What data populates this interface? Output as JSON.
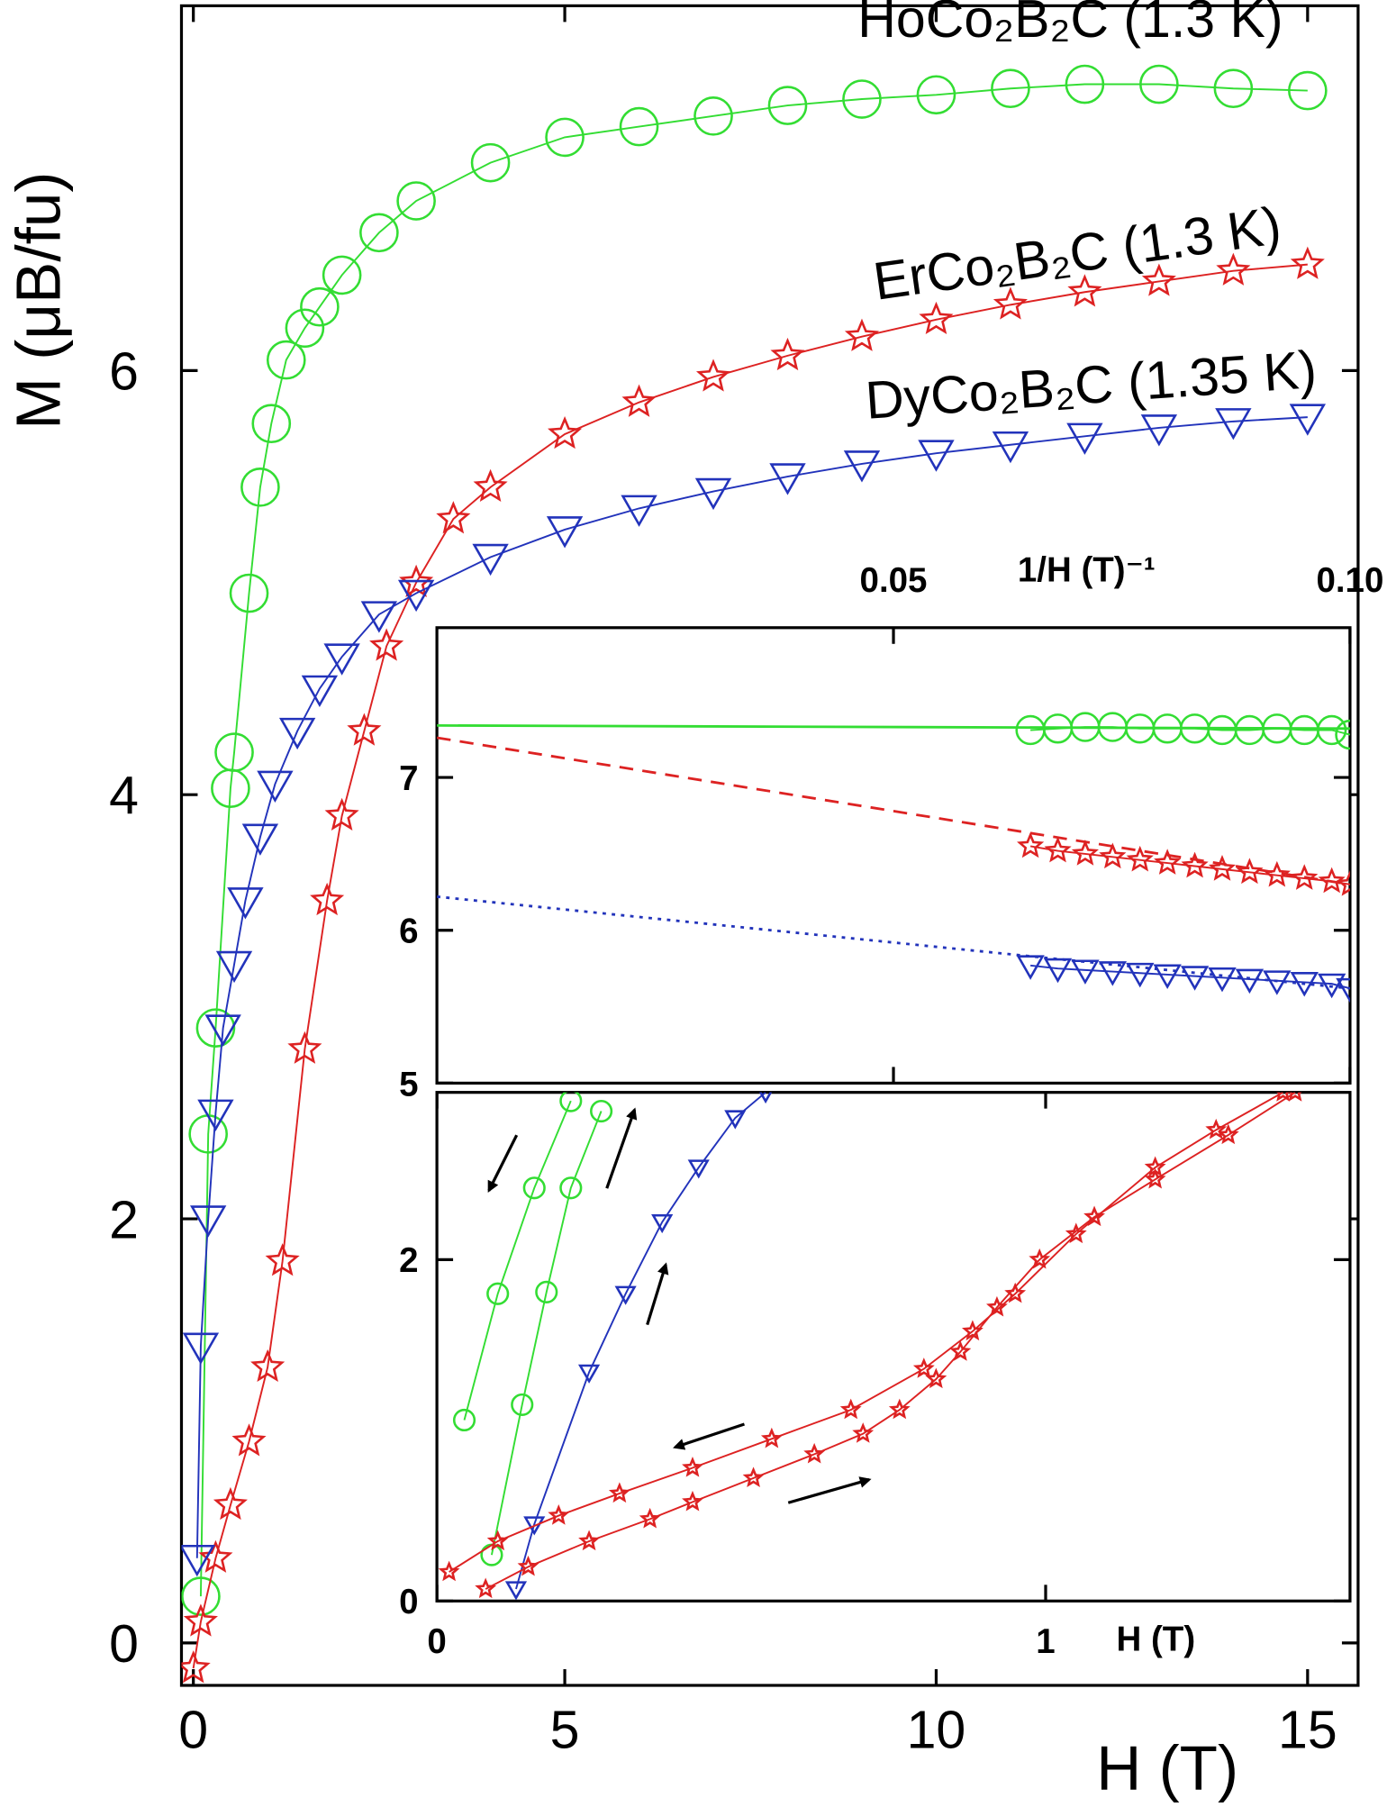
{
  "chart_data": [
    {
      "type": "line",
      "x_label": "H (T)",
      "y_label": "M (μB/fu)",
      "xlim": [
        -0.16,
        15.68
      ],
      "ylim": [
        -0.2,
        7.72
      ],
      "xticks": [
        0,
        5,
        10,
        15
      ],
      "yticks": [
        0,
        2,
        4,
        6
      ],
      "series": [
        {
          "name": "HoCo₂B₂C (1.3 K)",
          "color": "#33dd33",
          "marker": "circle",
          "x": [
            0.1,
            0.2,
            0.3,
            0.5,
            0.55,
            0.75,
            0.9,
            1.05,
            1.25,
            1.5,
            1.7,
            2,
            2.5,
            3,
            4,
            5,
            6,
            7,
            8,
            9,
            10,
            11,
            12,
            13,
            14,
            15
          ],
          "values": [
            0.22,
            2.4,
            2.9,
            4.03,
            4.2,
            4.95,
            5.45,
            5.75,
            6.05,
            6.2,
            6.3,
            6.45,
            6.65,
            6.8,
            6.98,
            7.1,
            7.15,
            7.2,
            7.25,
            7.28,
            7.3,
            7.33,
            7.35,
            7.35,
            7.33,
            7.32
          ]
        },
        {
          "name": "ErCo₂B₂C (1.3 K)",
          "color": "#dd2222",
          "marker": "star",
          "x": [
            0,
            0.1,
            0.3,
            0.5,
            0.75,
            1,
            1.2,
            1.5,
            1.8,
            2,
            2.3,
            2.6,
            3,
            3.5,
            4,
            5,
            6,
            7,
            8,
            9,
            10,
            11,
            12,
            13,
            14,
            15
          ],
          "values": [
            -0.12,
            0.1,
            0.4,
            0.65,
            0.95,
            1.3,
            1.8,
            2.8,
            3.5,
            3.9,
            4.3,
            4.7,
            5.0,
            5.3,
            5.45,
            5.7,
            5.85,
            5.97,
            6.07,
            6.16,
            6.24,
            6.31,
            6.37,
            6.42,
            6.47,
            6.5
          ]
        },
        {
          "name": "DyCo₂B₂C (1.35 K)",
          "color": "#2233bb",
          "marker": "triangle",
          "x": [
            0.05,
            0.1,
            0.2,
            0.3,
            0.4,
            0.55,
            0.7,
            0.9,
            1.1,
            1.4,
            1.7,
            2,
            2.5,
            3,
            4,
            5,
            6,
            7,
            8,
            9,
            10,
            11,
            12,
            13,
            14,
            15
          ],
          "values": [
            0.4,
            1.4,
            2.0,
            2.5,
            2.9,
            3.2,
            3.5,
            3.8,
            4.05,
            4.3,
            4.5,
            4.65,
            4.85,
            4.95,
            5.12,
            5.25,
            5.35,
            5.43,
            5.5,
            5.56,
            5.61,
            5.65,
            5.69,
            5.73,
            5.76,
            5.78
          ]
        }
      ]
    },
    {
      "type": "line",
      "x_label": "1/H (T)⁻¹",
      "xlim": [
        0,
        0.1
      ],
      "ylim": [
        5,
        7.98
      ],
      "xticks": [
        0.05,
        {
          "value": 0.1,
          "label": "0.10"
        }
      ],
      "yticks": [
        5,
        6,
        7
      ],
      "series": [
        {
          "color": "#33dd33",
          "style": "solid",
          "x": [
            0,
            0.1
          ],
          "values": [
            7.34,
            7.32
          ]
        },
        {
          "color": "#dd2222",
          "style": "dashed",
          "x": [
            0,
            0.1
          ],
          "values": [
            7.26,
            6.3
          ]
        },
        {
          "color": "#2233bb",
          "style": "dotted",
          "x": [
            0,
            0.1
          ],
          "values": [
            6.22,
            5.62
          ]
        },
        {
          "color": "#33dd33",
          "marker": "circle",
          "x": [
            0.065,
            0.068,
            0.071,
            0.074,
            0.077,
            0.08,
            0.083,
            0.086,
            0.089,
            0.092,
            0.095,
            0.098,
            0.1
          ],
          "values": [
            7.31,
            7.32,
            7.33,
            7.33,
            7.32,
            7.32,
            7.32,
            7.31,
            7.31,
            7.32,
            7.31,
            7.31,
            7.28
          ]
        },
        {
          "color": "#dd2222",
          "marker": "star",
          "x": [
            0.065,
            0.068,
            0.071,
            0.074,
            0.077,
            0.08,
            0.083,
            0.086,
            0.089,
            0.092,
            0.095,
            0.098,
            0.1
          ],
          "values": [
            6.55,
            6.52,
            6.5,
            6.48,
            6.46,
            6.44,
            6.42,
            6.4,
            6.38,
            6.36,
            6.34,
            6.32,
            6.3
          ]
        },
        {
          "color": "#2233bb",
          "marker": "triangle",
          "x": [
            0.065,
            0.068,
            0.071,
            0.074,
            0.077,
            0.08,
            0.083,
            0.086,
            0.089,
            0.092,
            0.095,
            0.098,
            0.1
          ],
          "values": [
            5.77,
            5.75,
            5.74,
            5.73,
            5.72,
            5.71,
            5.7,
            5.69,
            5.68,
            5.67,
            5.66,
            5.65,
            5.62
          ]
        }
      ]
    },
    {
      "type": "line",
      "x_label": "H (T)",
      "xlim": [
        0,
        1.5
      ],
      "ylim": [
        0,
        2.98
      ],
      "xticks": [
        0,
        1
      ],
      "yticks": [
        0,
        2
      ],
      "series": [
        {
          "color": "#33dd33",
          "marker": "circle",
          "x": [
            0.045,
            0.1,
            0.16,
            0.22
          ],
          "values": [
            1.06,
            1.8,
            2.42,
            2.93
          ]
        },
        {
          "color": "#33dd33",
          "marker": "circle",
          "x": [
            0.09,
            0.14,
            0.18,
            0.22,
            0.27
          ],
          "values": [
            0.27,
            1.15,
            1.81,
            2.42,
            2.87
          ]
        },
        {
          "color": "#2233bb",
          "marker": "triangle",
          "x": [
            0.13,
            0.16,
            0.25,
            0.31,
            0.37,
            0.43,
            0.49,
            0.54
          ],
          "values": [
            0.07,
            0.45,
            1.34,
            1.8,
            2.22,
            2.54,
            2.83,
            2.98
          ]
        },
        {
          "color": "#dd2222",
          "marker": "star",
          "x": [
            0.02,
            0.1,
            0.2,
            0.3,
            0.42,
            0.55,
            0.68,
            0.8,
            0.88,
            0.95,
            1.05,
            1.18,
            1.28,
            1.39
          ],
          "values": [
            0.17,
            0.35,
            0.5,
            0.63,
            0.78,
            0.95,
            1.12,
            1.36,
            1.58,
            1.8,
            2.15,
            2.54,
            2.76,
            2.98
          ]
        },
        {
          "color": "#dd2222",
          "marker": "star",
          "x": [
            0.08,
            0.15,
            0.25,
            0.35,
            0.42,
            0.52,
            0.62,
            0.7,
            0.76,
            0.82,
            0.86,
            0.92,
            0.99,
            1.08,
            1.18,
            1.3,
            1.41
          ],
          "values": [
            0.07,
            0.2,
            0.35,
            0.48,
            0.58,
            0.72,
            0.86,
            0.98,
            1.12,
            1.3,
            1.46,
            1.72,
            2.0,
            2.25,
            2.47,
            2.73,
            2.98
          ]
        }
      ]
    }
  ]
}
